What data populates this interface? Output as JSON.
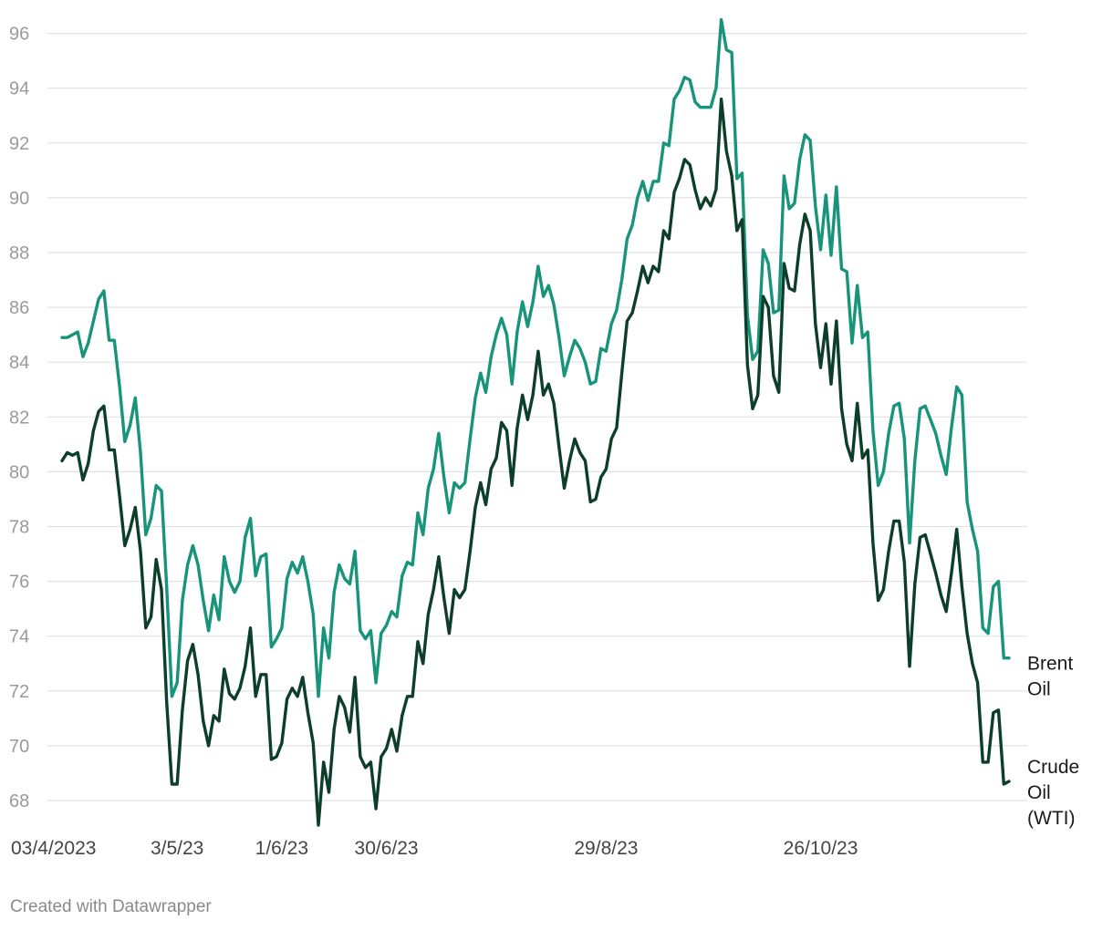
{
  "footer": "Created with Datawrapper",
  "chart_data": {
    "type": "line",
    "title": "",
    "xlabel": "",
    "ylabel": "",
    "ylim": [
      67,
      96.8
    ],
    "y_ticks": [
      68,
      70,
      72,
      74,
      76,
      78,
      80,
      82,
      84,
      86,
      88,
      90,
      92,
      94,
      96
    ],
    "grid": true,
    "x_tick_labels": [
      {
        "index": 0,
        "label": "03/4/2023"
      },
      {
        "index": 22,
        "label": "3/5/23"
      },
      {
        "index": 42,
        "label": "1/6/23"
      },
      {
        "index": 62,
        "label": "30/6/23"
      },
      {
        "index": 104,
        "label": "29/8/23"
      },
      {
        "index": 145,
        "label": "26/10/23"
      }
    ],
    "series": [
      {
        "name": "Brent Oil",
        "label_lines": [
          "Brent",
          "Oil"
        ],
        "color": "#17947a",
        "values": [
          84.9,
          84.9,
          85.0,
          85.1,
          84.2,
          84.7,
          85.5,
          86.3,
          86.6,
          84.8,
          84.8,
          83.1,
          81.1,
          81.7,
          82.7,
          80.7,
          77.7,
          78.3,
          79.5,
          79.3,
          75.8,
          71.8,
          72.3,
          75.3,
          76.6,
          77.3,
          76.6,
          75.3,
          74.2,
          75.5,
          74.6,
          76.9,
          76.0,
          75.6,
          76.0,
          77.6,
          78.3,
          76.2,
          76.9,
          77.0,
          73.6,
          73.9,
          74.3,
          76.1,
          76.7,
          76.3,
          76.9,
          76.0,
          74.8,
          71.8,
          74.3,
          73.2,
          75.6,
          76.6,
          76.1,
          75.9,
          77.1,
          74.2,
          73.9,
          74.2,
          72.3,
          74.1,
          74.4,
          74.9,
          74.7,
          76.2,
          76.7,
          76.6,
          78.5,
          77.7,
          79.4,
          80.1,
          81.4,
          79.8,
          78.5,
          79.6,
          79.4,
          79.6,
          81.2,
          82.7,
          83.6,
          82.9,
          84.2,
          85.0,
          85.6,
          85.0,
          83.2,
          85.1,
          86.2,
          85.3,
          86.2,
          87.5,
          86.4,
          86.8,
          86.1,
          84.9,
          83.5,
          84.2,
          84.8,
          84.5,
          84.0,
          83.2,
          83.3,
          84.5,
          84.4,
          85.4,
          85.9,
          87.0,
          88.5,
          89.0,
          90.0,
          90.6,
          89.9,
          90.6,
          90.6,
          92.0,
          91.9,
          93.6,
          93.9,
          94.4,
          94.3,
          93.5,
          93.3,
          93.3,
          93.3,
          94.0,
          96.5,
          95.4,
          95.3,
          90.7,
          90.9,
          85.7,
          84.1,
          84.4,
          88.1,
          87.6,
          85.8,
          85.9,
          90.8,
          89.6,
          89.8,
          91.4,
          92.3,
          92.1,
          89.7,
          88.1,
          90.1,
          87.9,
          90.4,
          87.4,
          87.3,
          84.7,
          86.8,
          84.9,
          85.1,
          81.5,
          79.5,
          80.0,
          81.4,
          82.4,
          82.5,
          81.2,
          77.4,
          80.4,
          82.3,
          82.4,
          81.9,
          81.4,
          80.6,
          79.9,
          81.6,
          83.1,
          82.8,
          78.9,
          77.9,
          77.1,
          74.3,
          74.1,
          75.8,
          76.0,
          73.2,
          73.2
        ]
      },
      {
        "name": "Crude Oil (WTI)",
        "label_lines": [
          "Crude",
          "Oil",
          "(WTI)"
        ],
        "color": "#0d3e29",
        "values": [
          80.4,
          80.7,
          80.6,
          80.7,
          79.7,
          80.3,
          81.5,
          82.2,
          82.4,
          80.8,
          80.8,
          79.1,
          77.3,
          77.9,
          78.7,
          77.1,
          74.3,
          74.7,
          76.8,
          75.7,
          71.6,
          68.6,
          68.6,
          71.3,
          73.1,
          73.7,
          72.6,
          70.9,
          70.0,
          71.1,
          70.9,
          72.8,
          71.9,
          71.7,
          72.1,
          72.9,
          74.3,
          71.8,
          72.6,
          72.6,
          69.5,
          69.6,
          70.1,
          71.7,
          72.1,
          71.8,
          72.5,
          71.2,
          70.1,
          67.1,
          69.4,
          68.3,
          70.6,
          71.8,
          71.4,
          70.5,
          72.5,
          69.6,
          69.2,
          69.4,
          67.7,
          69.6,
          69.9,
          70.6,
          69.8,
          71.1,
          71.8,
          71.8,
          73.8,
          73.0,
          74.8,
          75.7,
          76.9,
          75.4,
          74.1,
          75.7,
          75.4,
          75.7,
          77.1,
          78.7,
          79.6,
          78.8,
          80.1,
          80.5,
          81.8,
          81.5,
          79.5,
          81.6,
          82.8,
          81.9,
          82.8,
          84.4,
          82.8,
          83.2,
          82.5,
          80.9,
          79.4,
          80.4,
          81.2,
          80.7,
          80.4,
          78.9,
          79.0,
          79.8,
          80.1,
          81.2,
          81.6,
          83.6,
          85.5,
          85.8,
          86.6,
          87.5,
          86.9,
          87.5,
          87.3,
          88.8,
          88.5,
          90.2,
          90.7,
          91.4,
          91.2,
          90.3,
          89.6,
          90.0,
          89.7,
          90.3,
          93.6,
          91.7,
          90.8,
          88.8,
          89.2,
          83.9,
          82.3,
          82.8,
          86.4,
          86.0,
          83.5,
          82.9,
          87.6,
          86.7,
          86.6,
          88.3,
          89.4,
          88.8,
          85.4,
          83.8,
          85.4,
          83.2,
          85.5,
          82.3,
          81.0,
          80.4,
          82.5,
          80.5,
          80.8,
          77.4,
          75.3,
          75.7,
          77.1,
          78.2,
          78.2,
          76.7,
          72.9,
          75.9,
          77.6,
          77.7,
          77.0,
          76.3,
          75.5,
          74.9,
          76.3,
          77.9,
          75.8,
          74.1,
          73.0,
          72.3,
          69.4,
          69.4,
          71.2,
          71.3,
          68.6,
          68.7
        ]
      }
    ]
  }
}
